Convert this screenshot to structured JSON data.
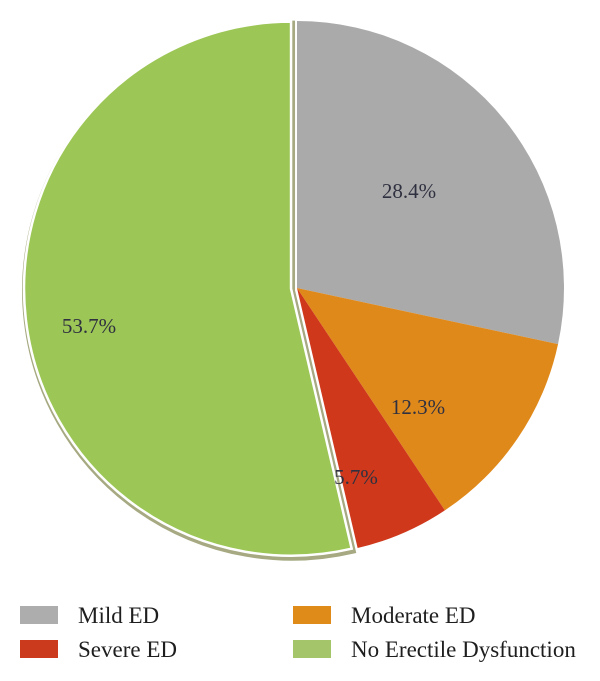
{
  "figure": {
    "background_color": "#ffffff"
  },
  "chart_data": {
    "type": "pie",
    "start_angle_deg": 0,
    "direction": "clockwise",
    "legend_position": "bottom",
    "slices": [
      {
        "label": "Mild ED",
        "value": 28.4,
        "display": "28.4%",
        "color": "#aaaaaa",
        "exploded": false
      },
      {
        "label": "Moderate ED",
        "value": 12.3,
        "display": "12.3%",
        "color": "#e0891b",
        "exploded": false
      },
      {
        "label": "Severe ED",
        "value": 5.7,
        "display": "5.7%",
        "color": "#cf381b",
        "exploded": false
      },
      {
        "label": "No Erectile Dysfunction",
        "value": 53.7,
        "display": "53.7%",
        "color": "#9cc655",
        "exploded": true
      }
    ],
    "exploded_slice_border_color": "#ffffff",
    "exploded_slice_rim_color": "#a6a981",
    "label_text_color": "#2f3140"
  },
  "legend": {
    "items": [
      {
        "label": "Mild ED",
        "color": "#adadad"
      },
      {
        "label": "Moderate ED",
        "color": "#df8b1a"
      },
      {
        "label": "Severe ED",
        "color": "#cc3a1e"
      },
      {
        "label": "No Erectile Dysfunction",
        "color": "#a4c56a"
      }
    ],
    "text_color": "#1e1e1e"
  }
}
